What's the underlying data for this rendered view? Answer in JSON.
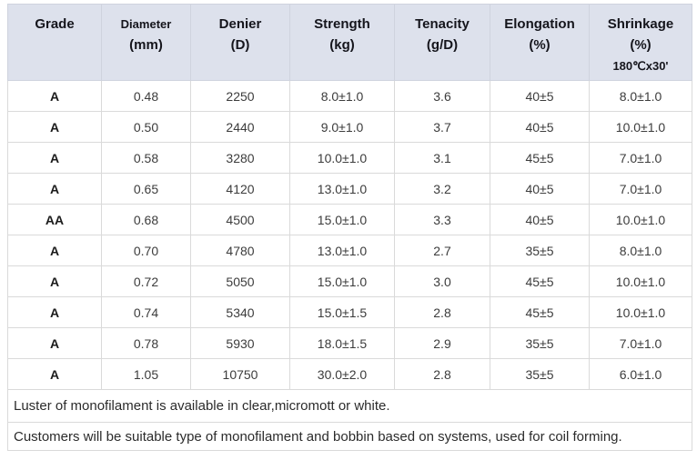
{
  "colors": {
    "header_bg": "#dde1ec",
    "border": "#dadada",
    "header_text": "#15151c",
    "cell_text": "#3c3c3c"
  },
  "table": {
    "columns": [
      {
        "id": "grade",
        "lines": [
          "Grade"
        ]
      },
      {
        "id": "diameter",
        "lines": [
          "Diameter",
          "(mm)"
        ]
      },
      {
        "id": "denier",
        "lines": [
          "Denier",
          "(D)"
        ]
      },
      {
        "id": "strength",
        "lines": [
          "Strength",
          "(kg)"
        ]
      },
      {
        "id": "tenacity",
        "lines": [
          "Tenacity",
          "(g/D)"
        ]
      },
      {
        "id": "elongation",
        "lines": [
          "Elongation",
          "(%)"
        ]
      },
      {
        "id": "shrinkage",
        "lines": [
          "Shrinkage",
          "(%)",
          "180℃x30'"
        ]
      }
    ],
    "rows": [
      [
        "A",
        "0.48",
        "2250",
        "8.0±1.0",
        "3.6",
        "40±5",
        "8.0±1.0"
      ],
      [
        "A",
        "0.50",
        "2440",
        "9.0±1.0",
        "3.7",
        "40±5",
        "10.0±1.0"
      ],
      [
        "A",
        "0.58",
        "3280",
        "10.0±1.0",
        "3.1",
        "45±5",
        "7.0±1.0"
      ],
      [
        "A",
        "0.65",
        "4120",
        "13.0±1.0",
        "3.2",
        "40±5",
        "7.0±1.0"
      ],
      [
        "AA",
        "0.68",
        "4500",
        "15.0±1.0",
        "3.3",
        "40±5",
        "10.0±1.0"
      ],
      [
        "A",
        "0.70",
        "4780",
        "13.0±1.0",
        "2.7",
        "35±5",
        "8.0±1.0"
      ],
      [
        "A",
        "0.72",
        "5050",
        "15.0±1.0",
        "3.0",
        "45±5",
        "10.0±1.0"
      ],
      [
        "A",
        "0.74",
        "5340",
        "15.0±1.5",
        "2.8",
        "45±5",
        "10.0±1.0"
      ],
      [
        "A",
        "0.78",
        "5930",
        "18.0±1.5",
        "2.9",
        "35±5",
        "7.0±1.0"
      ],
      [
        "A",
        "1.05",
        "10750",
        "30.0±2.0",
        "2.8",
        "35±5",
        "6.0±1.0"
      ]
    ],
    "notes": [
      "Luster of monofilament is available in clear,micromott or white.",
      "Customers will be suitable type of monofilament and bobbin based on systems, used for coil forming."
    ]
  }
}
